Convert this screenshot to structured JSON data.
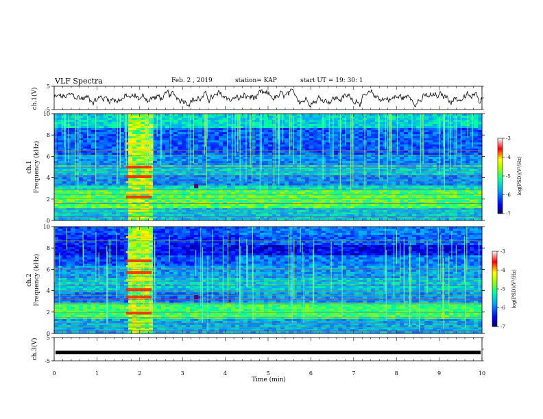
{
  "header": {
    "title": "VLF Spectra",
    "date": "Feb. 2 , 2019",
    "station": "station= KAP",
    "start": "start UT = 19: 30: 1"
  },
  "chart_data": [
    {
      "type": "line",
      "name": "ch1-waveform",
      "ylabel": "ch.1(V)",
      "ylim": [
        -5,
        5
      ],
      "yticks": [
        "5",
        "-5"
      ],
      "xlim": [
        0,
        10
      ],
      "description_of_values": "noisy waveform around 0 V with amplitude about ±2 V"
    },
    {
      "type": "heatmap",
      "name": "ch1-spectrogram",
      "ylabel": "Frequency (kHz)",
      "channel_label": "ch.1",
      "ylim": [
        0,
        10
      ],
      "yticks": [
        "0",
        "2",
        "4",
        "6",
        "8",
        "10"
      ],
      "xlim": [
        0,
        10
      ],
      "burst_interval_min": [
        1.68,
        2.28
      ]
    },
    {
      "type": "heatmap",
      "name": "ch2-spectrogram",
      "ylabel": "Frequency (kHz)",
      "channel_label": "ch.2",
      "ylim": [
        0,
        10
      ],
      "yticks": [
        "0",
        "2",
        "4",
        "6",
        "8",
        "10"
      ],
      "xlim": [
        0,
        10
      ],
      "burst_interval_min": [
        1.68,
        2.28
      ]
    },
    {
      "type": "line",
      "name": "ch3-waveform",
      "ylabel": "ch.3(V)",
      "ylim": [
        -5,
        5
      ],
      "yticks": [
        "5",
        "-5"
      ],
      "xlim": [
        0,
        10
      ],
      "constant_value": -1.4
    }
  ],
  "xaxis": {
    "label": "Time (min)",
    "ticks": [
      "0",
      "1",
      "2",
      "3",
      "4",
      "5",
      "6",
      "7",
      "8",
      "9",
      "10"
    ]
  },
  "colorbar": {
    "label": "log(PSD)(V²/Hz)",
    "ticks": [
      "-3",
      "-4",
      "-5",
      "-6",
      "-7"
    ],
    "range": [
      -7,
      -3
    ]
  },
  "colors": {
    "scale": [
      "#00007f",
      "#0000ff",
      "#00c8ff",
      "#00ffa0",
      "#ffff00",
      "#ff0000",
      "#ffffff"
    ]
  }
}
